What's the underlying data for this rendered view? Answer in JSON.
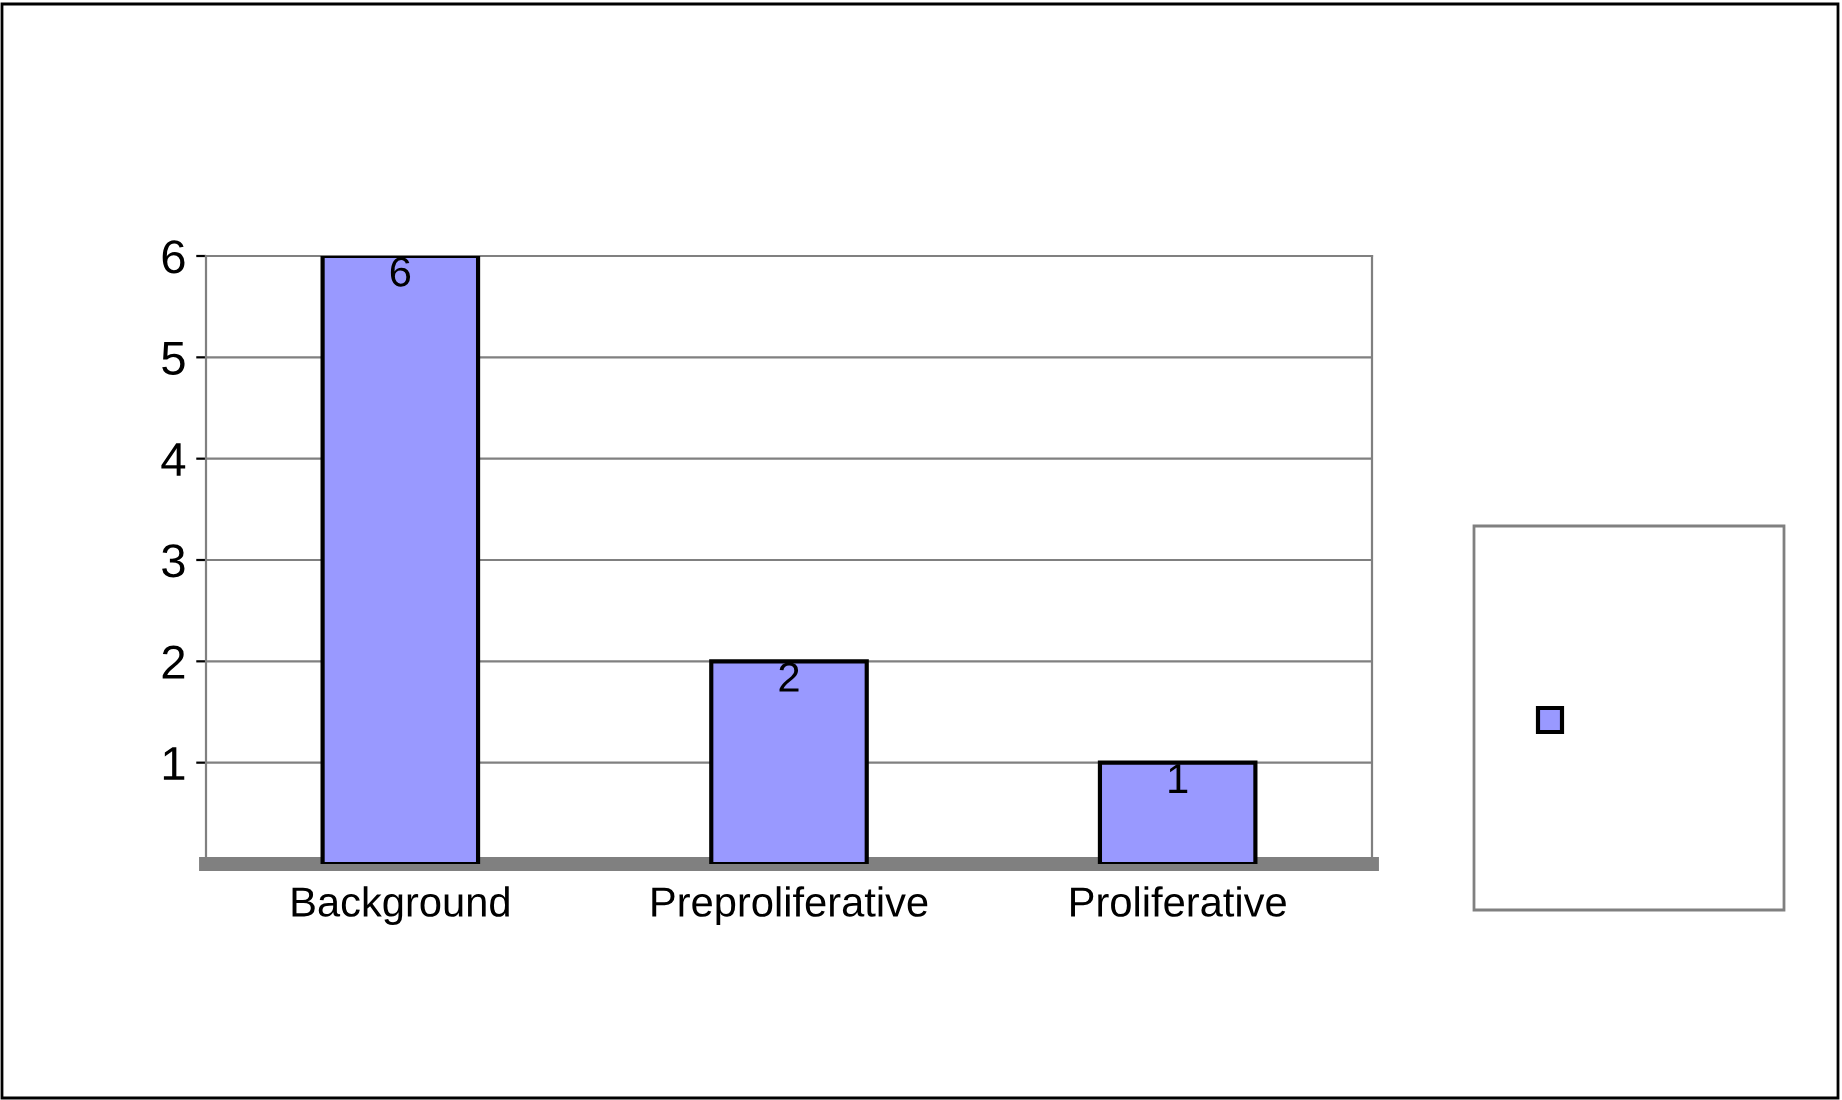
{
  "chart_data": {
    "type": "bar",
    "categories": [
      "Background",
      "Preproliferative",
      "Proliferative"
    ],
    "values": [
      6,
      2,
      1
    ],
    "color": "#9999ff",
    "ylim": [
      0,
      6
    ],
    "yticks": [
      1,
      2,
      3,
      4,
      5,
      6
    ],
    "grid": "y",
    "data_labels": true
  }
}
